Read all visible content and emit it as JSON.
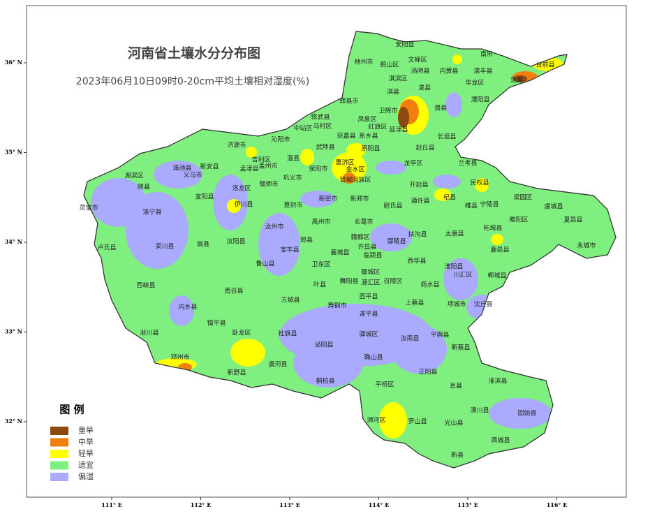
{
  "title": "河南省土壤水分分布图",
  "subtitle": "2023年06月10日09时0-20cm平均土壤相对湿度(%)",
  "lon_ticks": [
    {
      "value": 111,
      "label": "111° E"
    },
    {
      "value": 112,
      "label": "112° E"
    },
    {
      "value": 113,
      "label": "113° E"
    },
    {
      "value": 114,
      "label": "114° E"
    },
    {
      "value": 115,
      "label": "115° E"
    },
    {
      "value": 116,
      "label": "116° E"
    }
  ],
  "lat_ticks": [
    {
      "value": 36,
      "label": "36° N"
    },
    {
      "value": 35,
      "label": "35° N"
    },
    {
      "value": 34,
      "label": "34° N"
    },
    {
      "value": 33,
      "label": "33° N"
    },
    {
      "value": 32,
      "label": "32° N"
    }
  ],
  "legend": {
    "title": "图 例",
    "items": [
      {
        "name": "重旱",
        "color": "#8b4a10"
      },
      {
        "name": "中旱",
        "color": "#f07f10"
      },
      {
        "name": "轻旱",
        "color": "#ffff00"
      },
      {
        "name": "适宜",
        "color": "#7ff07f"
      },
      {
        "name": "偏湿",
        "color": "#aaaaff"
      }
    ]
  },
  "labels": [
    "林州市",
    "安阳县",
    "鹤山区",
    "文峰区",
    "汤阴县",
    "内黄县",
    "南乐",
    "清丰县",
    "台前县",
    "范县",
    "淇滨区",
    "浚县",
    "华龙区",
    "濮阳县",
    "淇县",
    "辉县市",
    "卫辉市",
    "滑县",
    "修武县",
    "凤泉区",
    "中站区",
    "马村区",
    "红旗区",
    "延津县",
    "长垣县",
    "新乡县",
    "获嘉县",
    "济源市",
    "沁阳市",
    "武陟县",
    "原阳县",
    "封丘县",
    "温县",
    "吉利区",
    "孟州市",
    "孟津县",
    "渑池县",
    "新安县",
    "义马市",
    "湖滨区",
    "陕县",
    "荥阳市",
    "惠济区",
    "金水区",
    "龙亭区",
    "兰考县",
    "巩义市",
    "偃师市",
    "管城回族区",
    "开封县",
    "民权县",
    "宜阳县",
    "洛龙区",
    "伊川县",
    "新密市",
    "新郑市",
    "尉氏县",
    "通许县",
    "杞县",
    "睢县",
    "宁陵县",
    "梁园区",
    "虞城县",
    "灵宝市",
    "洛宁县",
    "登封市",
    "夏邑县",
    "睢阳区",
    "长葛市",
    "禹州市",
    "汝州市",
    "扶沟县",
    "太康县",
    "柘城县",
    "卢氏县",
    "栾川县",
    "嵩县",
    "汝阳县",
    "郏县",
    "魏都区",
    "鄢陵县",
    "宝丰县",
    "许昌县",
    "临颍县",
    "襄城县",
    "永城市",
    "鹿邑县",
    "鲁山县",
    "西华县",
    "淮阳县",
    "卫东区",
    "郾城区",
    "川汇区",
    "郸城县",
    "西峡县",
    "南召县",
    "叶县",
    "舞阳县",
    "源汇区",
    "召陵区",
    "商水县",
    "方城县",
    "舞钢市",
    "西平县",
    "上蔡县",
    "项城市",
    "沈丘县",
    "内乡县",
    "遂平县",
    "镇平县",
    "卧龙区",
    "社旗县",
    "驿城区",
    "汝南县",
    "平舆县",
    "淅川县",
    "泌阳县",
    "新蔡县",
    "邓州市",
    "确山县",
    "唐河县",
    "正阳县",
    "新野县",
    "桐柏县",
    "平桥区",
    "息县",
    "淮滨县",
    "潢川县",
    "固始县",
    "浉河区",
    "罗山县",
    "光山县",
    "商城县",
    "新县"
  ]
}
